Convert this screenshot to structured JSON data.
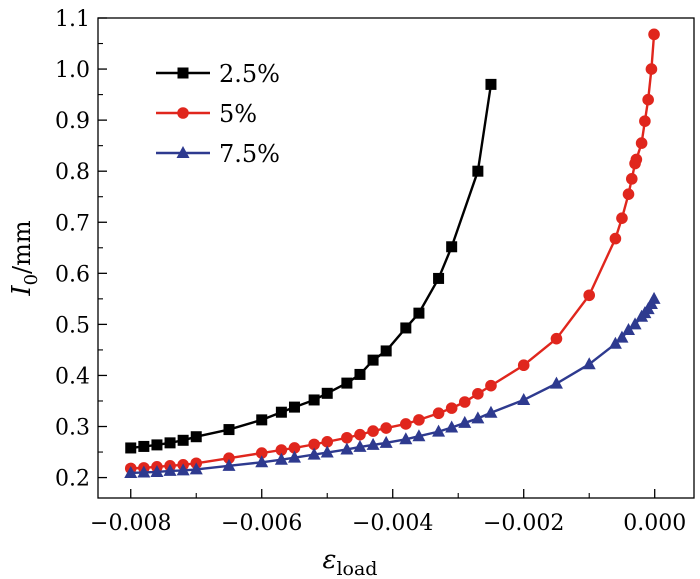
{
  "chart_data": {
    "type": "line",
    "title": "",
    "xlabel": {
      "symbol": "ε",
      "subscript": "load"
    },
    "ylabel": {
      "symbol": "I",
      "subscript": "0",
      "unit": "/mm"
    },
    "xlim": [
      -0.0085,
      0.0006
    ],
    "ylim": [
      0.16,
      1.1
    ],
    "xticks": [
      -0.008,
      -0.006,
      -0.004,
      -0.002,
      0.0
    ],
    "xtick_labels": [
      "−0.008",
      "−0.006",
      "−0.004",
      "−0.002",
      "0.000"
    ],
    "yticks": [
      0.2,
      0.3,
      0.4,
      0.5,
      0.6,
      0.7,
      0.8,
      0.9,
      1.0,
      1.1
    ],
    "ytick_labels": [
      "0.2",
      "0.3",
      "0.4",
      "0.5",
      "0.6",
      "0.7",
      "0.8",
      "0.9",
      "1.0",
      "1.1"
    ],
    "grid": false,
    "legend_position": "top-left",
    "series": [
      {
        "name": "2.5%",
        "color": "#000000",
        "marker": "square",
        "points": [
          [
            -0.008,
            0.258
          ],
          [
            -0.0078,
            0.261
          ],
          [
            -0.0076,
            0.264
          ],
          [
            -0.0074,
            0.268
          ],
          [
            -0.0072,
            0.273
          ],
          [
            -0.007,
            0.28
          ],
          [
            -0.0065,
            0.294
          ],
          [
            -0.006,
            0.313
          ],
          [
            -0.0057,
            0.328
          ],
          [
            -0.0055,
            0.338
          ],
          [
            -0.0052,
            0.352
          ],
          [
            -0.005,
            0.365
          ],
          [
            -0.0047,
            0.385
          ],
          [
            -0.0045,
            0.402
          ],
          [
            -0.0043,
            0.43
          ],
          [
            -0.0041,
            0.448
          ],
          [
            -0.0038,
            0.493
          ],
          [
            -0.0036,
            0.522
          ],
          [
            -0.0033,
            0.59
          ],
          [
            -0.0031,
            0.652
          ],
          [
            -0.0027,
            0.8
          ],
          [
            -0.0025,
            0.97
          ]
        ]
      },
      {
        "name": "5%",
        "color": "#e0261d",
        "marker": "circle",
        "points": [
          [
            -0.008,
            0.218
          ],
          [
            -0.0078,
            0.219
          ],
          [
            -0.0076,
            0.221
          ],
          [
            -0.0074,
            0.223
          ],
          [
            -0.0072,
            0.225
          ],
          [
            -0.007,
            0.228
          ],
          [
            -0.0065,
            0.238
          ],
          [
            -0.006,
            0.248
          ],
          [
            -0.0057,
            0.254
          ],
          [
            -0.0055,
            0.258
          ],
          [
            -0.0052,
            0.265
          ],
          [
            -0.005,
            0.27
          ],
          [
            -0.0047,
            0.278
          ],
          [
            -0.0045,
            0.284
          ],
          [
            -0.0043,
            0.291
          ],
          [
            -0.0041,
            0.297
          ],
          [
            -0.0038,
            0.305
          ],
          [
            -0.0036,
            0.313
          ],
          [
            -0.0033,
            0.326
          ],
          [
            -0.0031,
            0.336
          ],
          [
            -0.0029,
            0.348
          ],
          [
            -0.0027,
            0.364
          ],
          [
            -0.0025,
            0.38
          ],
          [
            -0.002,
            0.42
          ],
          [
            -0.0015,
            0.472
          ],
          [
            -0.001,
            0.557
          ],
          [
            -0.0006,
            0.668
          ],
          [
            -0.0005,
            0.708
          ],
          [
            -0.0004,
            0.755
          ],
          [
            -0.00035,
            0.785
          ],
          [
            -0.0003,
            0.815
          ],
          [
            -0.00028,
            0.823
          ],
          [
            -0.0002,
            0.855
          ],
          [
            -0.00015,
            0.898
          ],
          [
            -0.0001,
            0.94
          ],
          [
            -5e-05,
            1.0
          ],
          [
            -1e-05,
            1.068
          ]
        ]
      },
      {
        "name": "7.5%",
        "color": "#2e3a8f",
        "marker": "triangle",
        "points": [
          [
            -0.008,
            0.209
          ],
          [
            -0.0078,
            0.21
          ],
          [
            -0.0076,
            0.211
          ],
          [
            -0.0074,
            0.213
          ],
          [
            -0.0072,
            0.214
          ],
          [
            -0.007,
            0.216
          ],
          [
            -0.0065,
            0.223
          ],
          [
            -0.006,
            0.23
          ],
          [
            -0.0057,
            0.235
          ],
          [
            -0.0055,
            0.239
          ],
          [
            -0.0052,
            0.245
          ],
          [
            -0.005,
            0.249
          ],
          [
            -0.0047,
            0.255
          ],
          [
            -0.0045,
            0.26
          ],
          [
            -0.0043,
            0.264
          ],
          [
            -0.0041,
            0.268
          ],
          [
            -0.0038,
            0.275
          ],
          [
            -0.0036,
            0.281
          ],
          [
            -0.0033,
            0.29
          ],
          [
            -0.0031,
            0.298
          ],
          [
            -0.0029,
            0.307
          ],
          [
            -0.0027,
            0.316
          ],
          [
            -0.0025,
            0.327
          ],
          [
            -0.002,
            0.352
          ],
          [
            -0.0015,
            0.384
          ],
          [
            -0.001,
            0.422
          ],
          [
            -0.0006,
            0.462
          ],
          [
            -0.0005,
            0.474
          ],
          [
            -0.0004,
            0.489
          ],
          [
            -0.0003,
            0.5
          ],
          [
            -0.0002,
            0.515
          ],
          [
            -0.00015,
            0.522
          ],
          [
            -0.0001,
            0.53
          ],
          [
            -5e-05,
            0.54
          ],
          [
            -1e-05,
            0.55
          ]
        ]
      }
    ]
  }
}
